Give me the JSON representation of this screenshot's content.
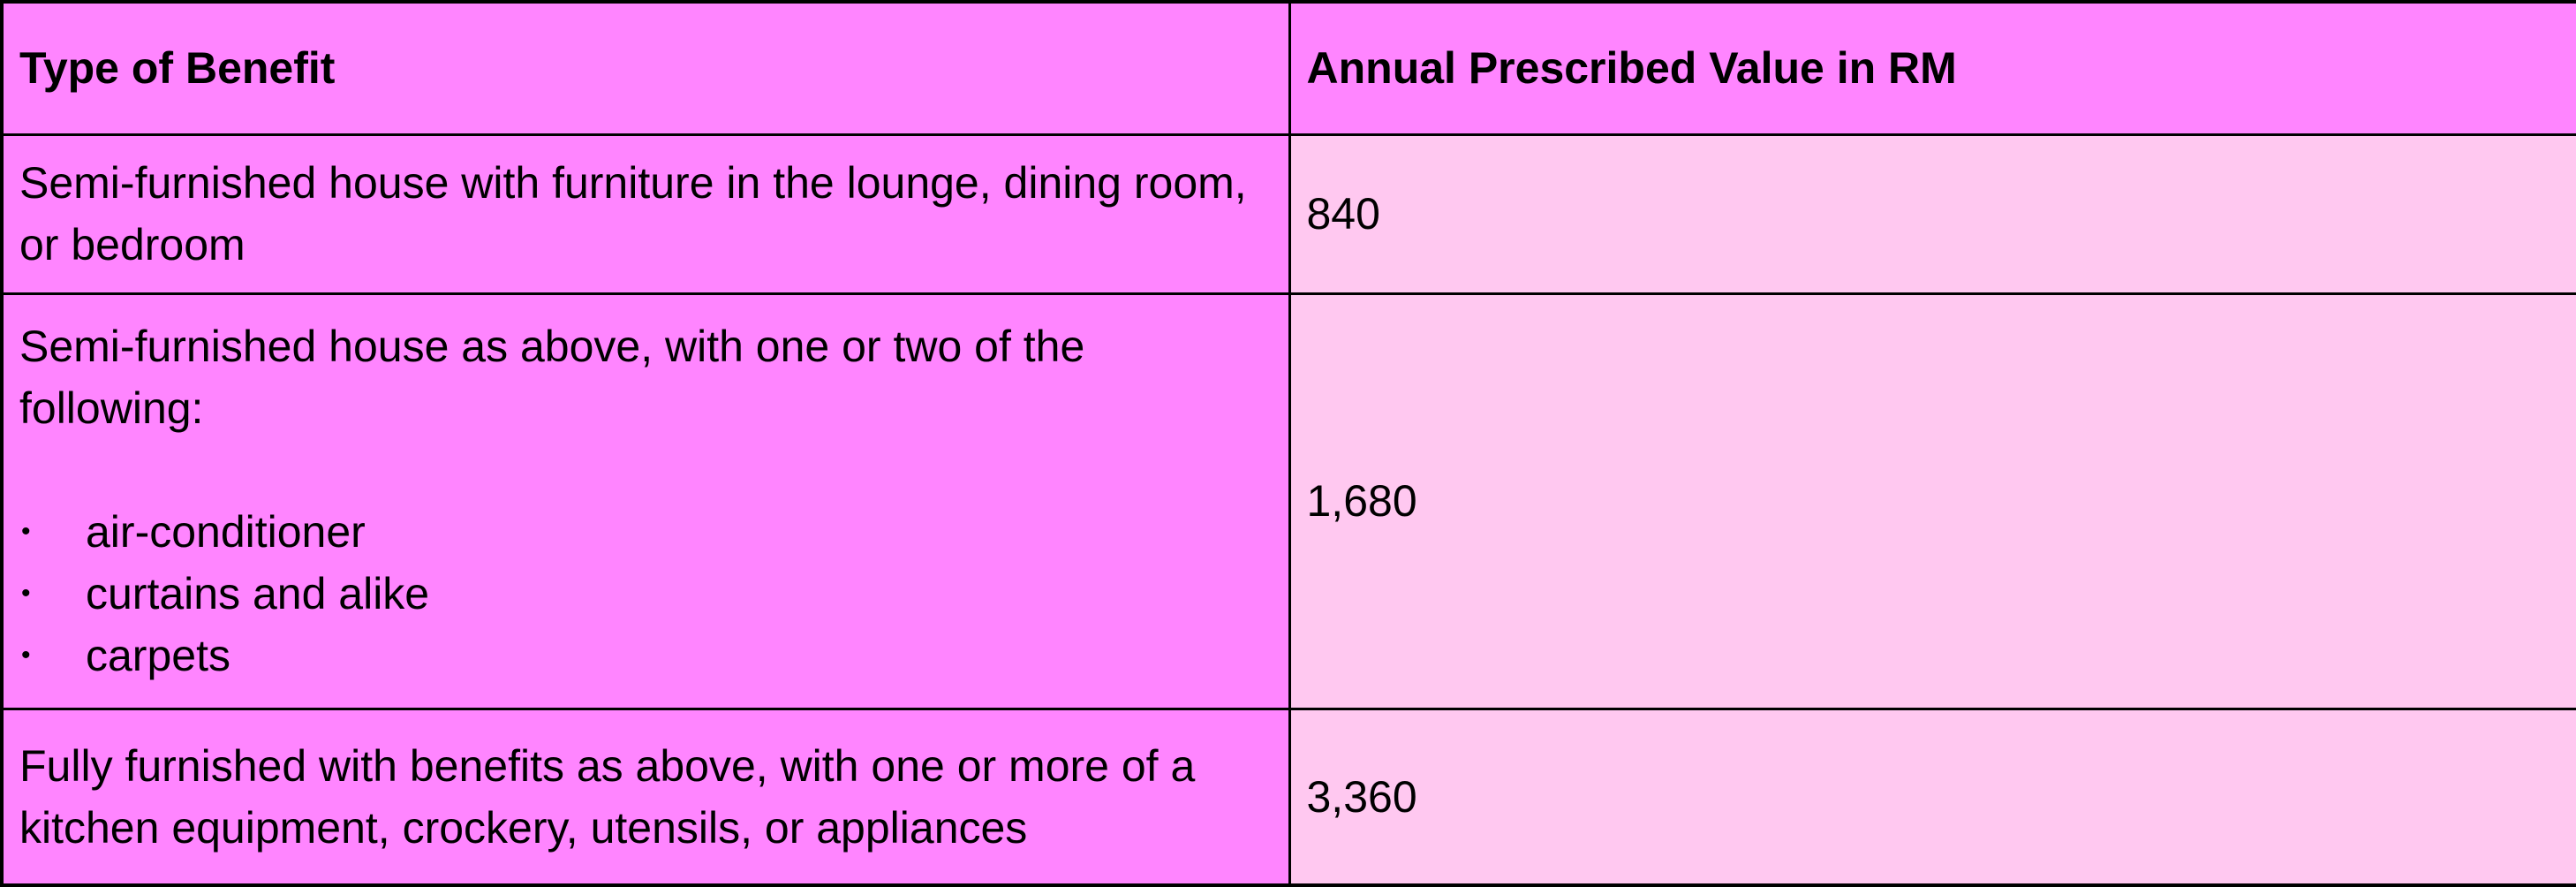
{
  "table": {
    "headers": {
      "type": "Type of Benefit",
      "value": "Annual Prescribed Value in RM"
    },
    "rows": [
      {
        "type": "Semi-furnished house with furniture in the lounge, dining room, or bedroom",
        "value": "840"
      },
      {
        "type": "Semi-furnished house as above, with one or two of the following:",
        "bullets": [
          "air-conditioner",
          "curtains and alike",
          "carpets"
        ],
        "value": "1,680"
      },
      {
        "type": "Fully furnished with benefits as above, with one or more of a kitchen equipment, crockery, utensils, or appliances",
        "value": "3,360"
      }
    ]
  },
  "colors": {
    "dark_pink": "#ff85ff",
    "light_pink": "#ffc8f0",
    "border": "#000000"
  }
}
